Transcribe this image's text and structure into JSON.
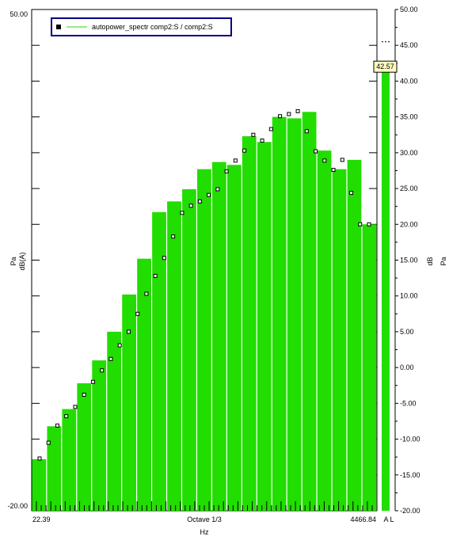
{
  "chart_data": {
    "type": "bar",
    "legend": {
      "text": "autopower_spectr comp2:S / comp2:S",
      "position": "top-left"
    },
    "ylim": [
      -20,
      50
    ],
    "y_label_left": [
      "Pa",
      "dB(A)"
    ],
    "y_label_left_max": "50.00",
    "y_label_left_min": "-20.00",
    "right_axis_labels": [
      "dB",
      "Pa"
    ],
    "right_ticks": [
      "50.00",
      "45.00",
      "40.00",
      "35.00",
      "30.00",
      "25.00",
      "20.00",
      "15.00",
      "10.00",
      "5.00",
      "0.00",
      "-5.00",
      "-10.00",
      "-15.00",
      "-20.00"
    ],
    "x_start_label": "22.39",
    "x_center_label": "Octave 1/3",
    "x_end_label": "4466.84",
    "x_unit_label": "Hz",
    "bar_values": [
      -12.8,
      -8.2,
      -5.8,
      -2.2,
      1.0,
      5.0,
      10.2,
      15.2,
      21.7,
      23.2,
      24.9,
      27.7,
      28.7,
      28.3,
      32.3,
      31.5,
      35.0,
      34.8,
      35.7,
      30.3,
      27.7,
      29.0,
      20.0
    ],
    "marker_values": [
      -12.7,
      -10.5,
      -8.1,
      -6.8,
      -5.5,
      -3.8,
      -2.0,
      -0.4,
      1.2,
      3.1,
      5.0,
      7.5,
      10.3,
      12.8,
      15.3,
      18.3,
      21.6,
      22.6,
      23.2,
      24.1,
      24.9,
      27.4,
      28.9,
      30.3,
      32.5,
      31.7,
      33.3,
      35.1,
      35.4,
      35.8,
      33.0,
      30.2,
      28.9,
      27.6,
      29.0,
      24.4,
      20.0,
      20.0
    ],
    "level_meter": {
      "value": 42.57,
      "label": "42.57",
      "channel_labels": "A L",
      "peak_hold": 45.5
    },
    "colors": {
      "bar": "#22dd00",
      "meter": "#22dd00",
      "marker_fill": "#ffffff",
      "axis": "#000000",
      "value_box": "#ffffc0",
      "legend_border": "#000080"
    },
    "grid": false
  }
}
